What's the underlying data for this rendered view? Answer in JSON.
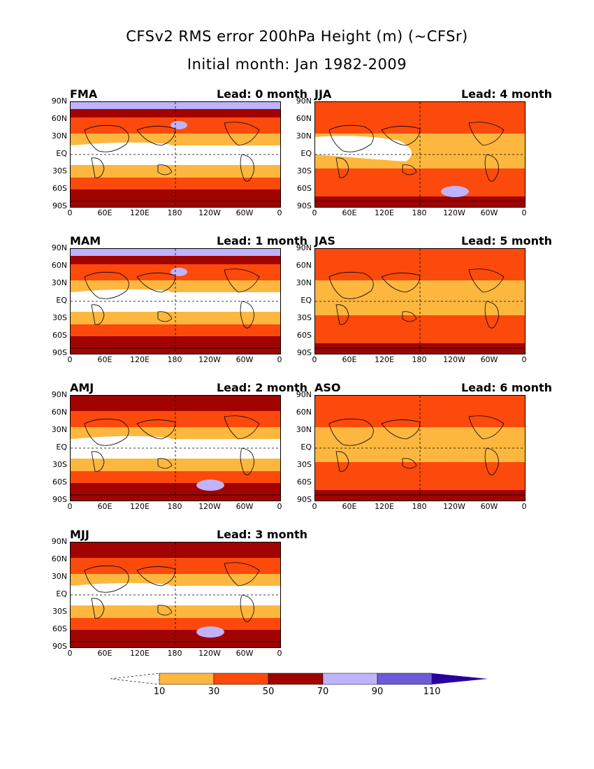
{
  "header": {
    "title": "CFSv2 RMS error 200hPa Height (m) (~CFSr)",
    "subtitle": "Initial month: Jan 1982-2009"
  },
  "chart_data": [
    {
      "type": "heatmap",
      "season": "FMA",
      "lead": "Lead: 0 month"
    },
    {
      "type": "heatmap",
      "season": "JJA",
      "lead": "Lead: 4 month"
    },
    {
      "type": "heatmap",
      "season": "MAM",
      "lead": "Lead: 1 month"
    },
    {
      "type": "heatmap",
      "season": "JAS",
      "lead": "Lead: 5 month"
    },
    {
      "type": "heatmap",
      "season": "AMJ",
      "lead": "Lead: 2 month"
    },
    {
      "type": "heatmap",
      "season": "ASO",
      "lead": "Lead: 6 month"
    },
    {
      "type": "heatmap",
      "season": "MJJ",
      "lead": "Lead: 3 month"
    }
  ],
  "axes": {
    "y_ticks": [
      "90N",
      "60N",
      "30N",
      "EQ",
      "30S",
      "60S",
      "90S"
    ],
    "x_ticks": [
      "0",
      "60E",
      "120E",
      "180",
      "120W",
      "60W",
      "0"
    ],
    "xlim": [
      0,
      360
    ],
    "ylim": [
      -90,
      90
    ]
  },
  "colorbar": {
    "labels": [
      "10",
      "30",
      "50",
      "70",
      "90",
      "110"
    ],
    "colors": [
      "#ffffff",
      "#fdb73f",
      "#fb4a0c",
      "#a10400",
      "#bfb3fb",
      "#6c5ad8",
      "#2a009a"
    ]
  }
}
